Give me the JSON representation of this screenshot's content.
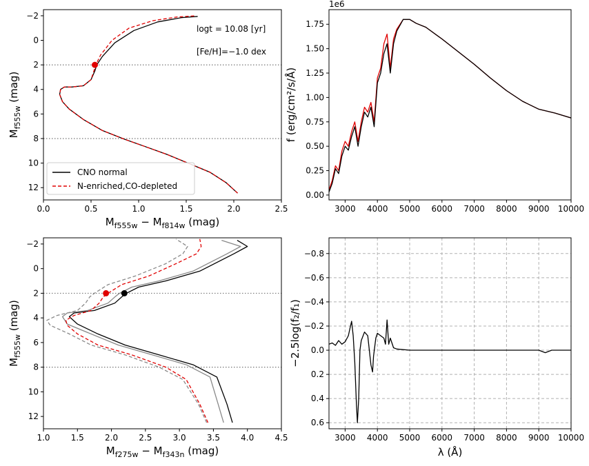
{
  "chart_data": [
    {
      "type": "line",
      "xlim": [
        0.0,
        2.5
      ],
      "ylim": [
        13.0,
        -2.5
      ],
      "y_inverted": true,
      "xticks": [
        "0.0",
        "0.5",
        "1.0",
        "1.5",
        "2.0",
        "2.5"
      ],
      "yticks": [
        "−2",
        "0",
        "2",
        "4",
        "6",
        "8",
        "10",
        "12"
      ],
      "xlabel_main": "M",
      "xlabel_sub1": "f555w",
      "xlabel_minus": " − M",
      "xlabel_sub2": "f814w",
      "xlabel_unit": " (mag)",
      "ylabel_main": "M",
      "ylabel_sub": "f555w",
      "ylabel_unit": " (mag)",
      "annotations": [
        "logt = 10.08 [yr]",
        "[Fe/H]=−1.0 dex"
      ],
      "legend": [
        "CNO normal",
        "N-enriched,CO-depleted"
      ],
      "hlines": [
        2,
        8
      ],
      "series": [
        {
          "name": "CNO normal",
          "color": "#000000",
          "style": "solid",
          "x": [
            2.04,
            1.92,
            1.75,
            1.55,
            1.3,
            1.05,
            0.85,
            0.62,
            0.42,
            0.27,
            0.2,
            0.17,
            0.18,
            0.22,
            0.3,
            0.42,
            0.5,
            0.54,
            0.56,
            0.62,
            0.75,
            0.95,
            1.2,
            1.45,
            1.62
          ],
          "y": [
            12.45,
            11.6,
            10.75,
            10.1,
            9.3,
            8.6,
            8.05,
            7.35,
            6.45,
            5.6,
            5.0,
            4.4,
            4.0,
            3.8,
            3.8,
            3.7,
            3.2,
            2.5,
            2.0,
            1.3,
            0.2,
            -0.8,
            -1.5,
            -1.85,
            -1.95
          ]
        },
        {
          "name": "N-enriched,CO-depleted",
          "color": "#e00000",
          "style": "dashed",
          "x": [
            2.04,
            1.92,
            1.75,
            1.55,
            1.3,
            1.05,
            0.85,
            0.62,
            0.42,
            0.27,
            0.2,
            0.17,
            0.18,
            0.22,
            0.3,
            0.42,
            0.5,
            0.53,
            0.55,
            0.6,
            0.72,
            0.9,
            1.15,
            1.4,
            1.6
          ],
          "y": [
            12.45,
            11.6,
            10.75,
            10.1,
            9.3,
            8.6,
            8.05,
            7.35,
            6.45,
            5.6,
            5.0,
            4.4,
            4.0,
            3.8,
            3.8,
            3.7,
            3.2,
            2.5,
            2.0,
            1.2,
            0.0,
            -1.0,
            -1.6,
            -1.9,
            -2.0
          ]
        }
      ],
      "markers": [
        {
          "x": 0.54,
          "y": 2.0,
          "color": "#e00000"
        }
      ]
    },
    {
      "type": "line",
      "xlim": [
        2500,
        10000
      ],
      "ylim": [
        -0.05,
        1.9
      ],
      "scale_note": "1e6",
      "xticks": [
        "3000",
        "4000",
        "5000",
        "6000",
        "7000",
        "8000",
        "9000",
        "10000"
      ],
      "yticks": [
        "0.00",
        "0.25",
        "0.50",
        "0.75",
        "1.00",
        "1.25",
        "1.50",
        "1.75"
      ],
      "ylabel": "f (erg/cm²/s/Å)",
      "series": [
        {
          "name": "",
          "color": "#e00000",
          "x": [
            2500,
            2600,
            2700,
            2800,
            2900,
            3000,
            3100,
            3200,
            3300,
            3400,
            3500,
            3600,
            3700,
            3800,
            3900,
            4000,
            4100,
            4200,
            4300,
            4400,
            4500,
            4600,
            4700,
            4800,
            5000,
            5200,
            5500,
            6000,
            6500,
            7000,
            7500,
            8000,
            8500,
            9000,
            9500,
            10000
          ],
          "y": [
            0.05,
            0.15,
            0.3,
            0.25,
            0.45,
            0.55,
            0.5,
            0.65,
            0.75,
            0.55,
            0.75,
            0.9,
            0.85,
            0.95,
            0.75,
            1.2,
            1.3,
            1.55,
            1.65,
            1.3,
            1.6,
            1.7,
            1.75,
            1.8,
            1.8,
            1.76,
            1.72,
            1.6,
            1.47,
            1.34,
            1.2,
            1.07,
            0.96,
            0.88,
            0.84,
            0.79
          ]
        },
        {
          "name": "",
          "color": "#000000",
          "x": [
            2500,
            2600,
            2700,
            2800,
            2900,
            3000,
            3100,
            3200,
            3300,
            3400,
            3500,
            3600,
            3700,
            3800,
            3900,
            4000,
            4100,
            4200,
            4300,
            4400,
            4500,
            4600,
            4700,
            4800,
            5000,
            5200,
            5500,
            6000,
            6500,
            7000,
            7500,
            8000,
            8500,
            9000,
            9500,
            10000
          ],
          "y": [
            0.03,
            0.12,
            0.27,
            0.22,
            0.4,
            0.5,
            0.46,
            0.6,
            0.7,
            0.5,
            0.7,
            0.85,
            0.8,
            0.9,
            0.7,
            1.15,
            1.25,
            1.45,
            1.55,
            1.25,
            1.55,
            1.68,
            1.74,
            1.8,
            1.8,
            1.76,
            1.72,
            1.6,
            1.47,
            1.34,
            1.2,
            1.07,
            0.96,
            0.88,
            0.84,
            0.79
          ]
        }
      ]
    },
    {
      "type": "line",
      "xlim": [
        1.0,
        4.5
      ],
      "ylim": [
        13.0,
        -2.5
      ],
      "y_inverted": true,
      "xticks": [
        "1.0",
        "1.5",
        "2.0",
        "2.5",
        "3.0",
        "3.5",
        "4.0",
        "4.5"
      ],
      "yticks": [
        "−2",
        "0",
        "2",
        "4",
        "6",
        "8",
        "10",
        "12"
      ],
      "xlabel_main": "M",
      "xlabel_sub1": "f275w",
      "xlabel_minus": " − M",
      "xlabel_sub2": "f343n",
      "xlabel_unit": " (mag)",
      "ylabel_main": "M",
      "ylabel_sub": "f555w",
      "ylabel_unit": " (mag)",
      "hlines": [
        2,
        8
      ],
      "series": [
        {
          "name": "",
          "color": "#000000",
          "style": "solid",
          "x": [
            3.78,
            3.7,
            3.55,
            3.2,
            2.7,
            2.2,
            1.8,
            1.5,
            1.38,
            1.45,
            1.75,
            2.05,
            2.15,
            2.22,
            2.4,
            2.8,
            3.3,
            3.8,
            4.0,
            3.85
          ],
          "y": [
            12.5,
            11.0,
            8.8,
            7.8,
            7.0,
            6.2,
            5.3,
            4.5,
            3.9,
            3.6,
            3.4,
            2.8,
            2.3,
            2.0,
            1.5,
            1.0,
            0.2,
            -1.2,
            -1.8,
            -2.3
          ]
        },
        {
          "name": "",
          "color": "#888888",
          "style": "solid",
          "x": [
            3.65,
            3.57,
            3.45,
            3.1,
            2.6,
            2.1,
            1.7,
            1.35,
            1.28,
            1.35,
            1.65,
            1.95,
            2.05,
            2.12,
            2.3,
            2.7,
            3.2,
            3.7,
            3.9,
            3.62
          ],
          "y": [
            12.5,
            11.0,
            8.8,
            7.8,
            7.0,
            6.2,
            5.3,
            4.5,
            3.9,
            3.6,
            3.4,
            2.8,
            2.3,
            2.0,
            1.5,
            1.0,
            0.2,
            -1.2,
            -1.8,
            -2.3
          ]
        },
        {
          "name": "",
          "color": "#e00000",
          "style": "dashed",
          "x": [
            3.42,
            3.3,
            3.1,
            2.8,
            2.3,
            1.8,
            1.5,
            1.35,
            1.33,
            1.45,
            1.7,
            1.82,
            1.88,
            1.95,
            2.15,
            2.55,
            2.95,
            3.25,
            3.32,
            3.3
          ],
          "y": [
            12.5,
            11.0,
            9.0,
            8.0,
            7.0,
            6.2,
            5.3,
            4.6,
            4.2,
            3.8,
            3.4,
            2.8,
            2.3,
            2.0,
            1.3,
            0.6,
            -0.4,
            -1.2,
            -1.8,
            -2.4
          ]
        },
        {
          "name": "",
          "color": "#888888",
          "style": "dashed",
          "x": [
            3.4,
            3.28,
            3.05,
            2.7,
            2.2,
            1.7,
            1.38,
            1.1,
            1.05,
            1.2,
            1.5,
            1.62,
            1.68,
            1.75,
            1.95,
            2.35,
            2.8,
            3.05,
            3.12,
            2.95
          ],
          "y": [
            12.5,
            11.0,
            9.0,
            8.0,
            7.0,
            6.2,
            5.3,
            4.6,
            4.2,
            3.8,
            3.4,
            2.8,
            2.3,
            2.0,
            1.3,
            0.6,
            -0.4,
            -1.2,
            -1.8,
            -2.4
          ]
        }
      ],
      "markers": [
        {
          "x": 1.92,
          "y": 2.0,
          "color": "#e00000"
        },
        {
          "x": 2.19,
          "y": 2.0,
          "color": "#000000"
        }
      ]
    },
    {
      "type": "line",
      "xlim": [
        2500,
        10000
      ],
      "ylim": [
        0.65,
        -0.93
      ],
      "y_inverted": true,
      "grid": true,
      "xticks": [
        "3000",
        "4000",
        "5000",
        "6000",
        "7000",
        "8000",
        "9000",
        "10000"
      ],
      "yticks": [
        "−0.8",
        "−0.6",
        "−0.4",
        "−0.2",
        "0.0",
        "0.2",
        "0.4",
        "0.6"
      ],
      "xlabel": "λ (Å)",
      "ylabel": "−2.5log(f₂/f₁)",
      "series": [
        {
          "name": "",
          "color": "#000000",
          "x": [
            2500,
            2600,
            2700,
            2800,
            2900,
            3000,
            3100,
            3150,
            3200,
            3250,
            3300,
            3350,
            3380,
            3420,
            3460,
            3500,
            3600,
            3700,
            3750,
            3800,
            3850,
            3880,
            3950,
            4000,
            4100,
            4200,
            4250,
            4300,
            4350,
            4400,
            4500,
            4600,
            5000,
            6000,
            7000,
            8000,
            9000,
            9200,
            9400,
            10000
          ],
          "y": [
            -0.05,
            -0.06,
            -0.04,
            -0.08,
            -0.05,
            -0.07,
            -0.12,
            -0.18,
            -0.24,
            -0.12,
            0.1,
            0.45,
            0.6,
            0.4,
            0.0,
            -0.08,
            -0.15,
            -0.12,
            0.0,
            0.12,
            0.18,
            0.05,
            -0.1,
            -0.14,
            -0.12,
            -0.1,
            -0.05,
            -0.25,
            -0.05,
            -0.1,
            -0.02,
            -0.01,
            0.0,
            0.0,
            0.0,
            0.0,
            0.0,
            0.02,
            0.0,
            0.0
          ]
        }
      ]
    }
  ]
}
